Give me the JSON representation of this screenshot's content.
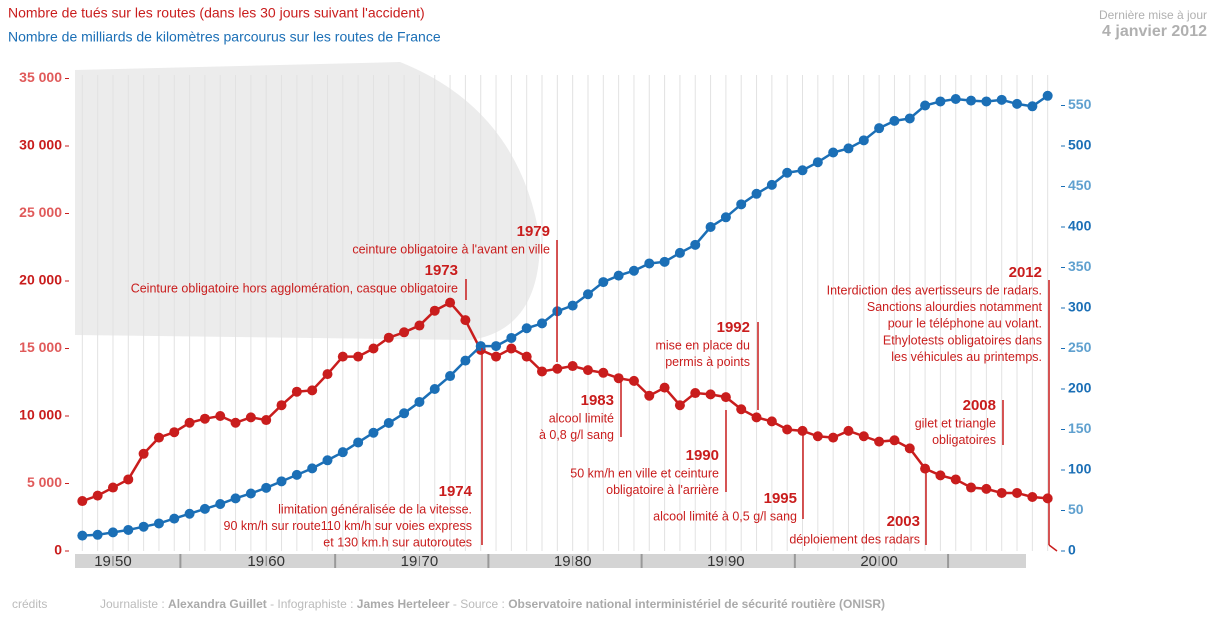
{
  "chart_data": {
    "type": "line",
    "series": [
      {
        "name": "Nombre de tués sur les routes (dans les 30 jours suivant l'accident)",
        "color": "#c91d1d",
        "axis": "y",
        "values": [
          3700,
          4100,
          4700,
          5300,
          7200,
          8400,
          8800,
          9500,
          9800,
          10000,
          9500,
          9900,
          9700,
          10800,
          11800,
          11900,
          13100,
          14400,
          14400,
          15000,
          15800,
          16200,
          16700,
          17800,
          18400,
          17100,
          14900,
          14400,
          15000,
          14400,
          13300,
          13500,
          13700,
          13400,
          13200,
          12800,
          12600,
          11500,
          12100,
          10800,
          11700,
          11600,
          11400,
          10500,
          9900,
          9600,
          9000,
          8900,
          8500,
          8400,
          8900,
          8500,
          8100,
          8200,
          7600,
          6100,
          5600,
          5300,
          4700,
          4600,
          4300,
          4300,
          4000,
          3900
        ]
      },
      {
        "name": "Nombre de milliards de kilomètres parcourus sur les routes de France",
        "color": "#1b6fb6",
        "axis": "y2",
        "values": [
          19,
          20,
          23,
          26,
          30,
          34,
          40,
          46,
          52,
          58,
          65,
          71,
          78,
          86,
          94,
          102,
          112,
          122,
          134,
          146,
          158,
          170,
          184,
          200,
          216,
          235,
          253,
          253,
          263,
          275,
          281,
          296,
          303,
          317,
          332,
          340,
          346,
          355,
          357,
          368,
          378,
          400,
          412,
          428,
          441,
          452,
          467,
          470,
          480,
          492,
          497,
          507,
          522,
          531,
          534,
          550,
          555,
          558,
          556,
          555,
          557,
          552,
          549,
          562
        ]
      }
    ],
    "x": [
      1948,
      1949,
      1950,
      1951,
      1952,
      1953,
      1954,
      1955,
      1956,
      1957,
      1958,
      1959,
      1960,
      1961,
      1962,
      1963,
      1964,
      1965,
      1966,
      1967,
      1968,
      1969,
      1970,
      1971,
      1972,
      1973,
      1974,
      1975,
      1976,
      1977,
      1978,
      1979,
      1980,
      1981,
      1982,
      1983,
      1984,
      1985,
      1986,
      1987,
      1988,
      1989,
      1990,
      1991,
      1992,
      1993,
      1994,
      1995,
      1996,
      1997,
      1998,
      1999,
      2000,
      2001,
      2002,
      2003,
      2004,
      2005,
      2006,
      2007,
      2008,
      2009,
      2010,
      2011
    ],
    "xlim": [
      1947,
      2012
    ],
    "xticks": [
      {
        "value": 1950,
        "label": "19 50"
      },
      {
        "value": 1960,
        "label": "19 60"
      },
      {
        "value": 1970,
        "label": "19 70"
      },
      {
        "value": 1980,
        "label": "19 80"
      },
      {
        "value": 1990,
        "label": "19 90"
      },
      {
        "value": 2000,
        "label": "20 00"
      }
    ],
    "ylim": [
      0,
      36000
    ],
    "yticks": [
      0,
      {
        "value": 5000,
        "label": "5 000"
      },
      {
        "value": 10000,
        "label": "10 000"
      },
      {
        "value": 15000,
        "label": "15 000"
      },
      {
        "value": 20000,
        "label": "20 000"
      },
      {
        "value": 25000,
        "label": "25 000"
      },
      {
        "value": 30000,
        "label": "30 000"
      },
      {
        "value": 35000,
        "label": "35 000"
      }
    ],
    "y2lim": [
      0,
      600
    ],
    "y2ticks": [
      0,
      50,
      100,
      150,
      200,
      250,
      300,
      350,
      400,
      450,
      500,
      550
    ],
    "update_label": "Dernière mise à jour",
    "update_date": "4 janvier 2012",
    "annotations": [
      {
        "title": "1973",
        "lines": [
          "Ceinture obligatoire hors agglomération, casque obligatoire"
        ]
      },
      {
        "title": "1974",
        "lines": [
          "limitation généralisée de la vitesse.",
          "90 km/h sur route110 km/h sur voies express",
          "et 130 km.h sur autoroutes"
        ]
      },
      {
        "title": "1979",
        "lines": [
          "ceinture obligatoire à l'avant en ville"
        ]
      },
      {
        "title": "1983",
        "lines": [
          "alcool limité",
          "à 0,8 g/l sang"
        ]
      },
      {
        "title": "1990",
        "lines": [
          "50 km/h en ville et ceinture",
          "obligatoire à l'arrière"
        ]
      },
      {
        "title": "1992",
        "lines": [
          "mise en place du",
          "permis à points"
        ]
      },
      {
        "title": "1995",
        "lines": [
          "alcool limité à 0,5 g/l sang"
        ]
      },
      {
        "title": "2003",
        "lines": [
          "déploiement des radars"
        ]
      },
      {
        "title": "2008",
        "lines": [
          "gilet et triangle",
          "obligatoires"
        ]
      },
      {
        "title": "2012",
        "lines": [
          "Interdiction des avertisseurs de radars.",
          "Sanctions alourdies notamment",
          "pour le téléphone au volant.",
          "Ethylotests obligatoires dans",
          "les véhicules au printemps."
        ]
      }
    ]
  },
  "footer": {
    "credits": "crédits",
    "parts": [
      {
        "text": "Journaliste : ",
        "bold": false
      },
      {
        "text": "Alexandra Guillet",
        "bold": true
      },
      {
        "text": "  -  Infographiste : ",
        "bold": false
      },
      {
        "text": "James Herteleer",
        "bold": true
      },
      {
        "text": "  -  Source : ",
        "bold": false
      },
      {
        "text": "Observatoire national interministériel de sécurité routière (ONISR)",
        "bold": true
      }
    ]
  }
}
